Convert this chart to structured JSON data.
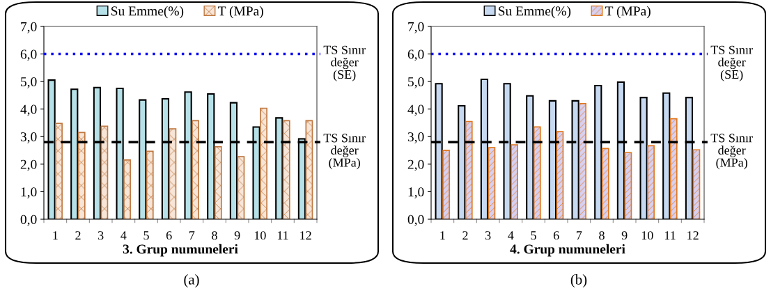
{
  "chart_data": [
    {
      "type": "bar",
      "xlabel": "3. Grup numuneleri",
      "categories": [
        "1",
        "2",
        "3",
        "4",
        "5",
        "6",
        "7",
        "8",
        "9",
        "10",
        "11",
        "12"
      ],
      "series": [
        {
          "name": "Su Emme(%)",
          "color": "#b7e1e8",
          "values": [
            5.05,
            4.72,
            4.78,
            4.75,
            4.33,
            4.37,
            4.62,
            4.55,
            4.23,
            3.35,
            3.68,
            2.92
          ]
        },
        {
          "name": "T (MPa)",
          "color": "#c07840",
          "values": [
            3.48,
            3.15,
            3.38,
            2.15,
            2.47,
            3.28,
            3.58,
            2.63,
            2.27,
            4.03,
            3.58,
            3.58
          ]
        }
      ],
      "ylim": [
        0,
        7
      ],
      "yticks": [
        {
          "value": 0,
          "label": "0,0"
        },
        {
          "value": 1,
          "label": "1,0"
        },
        {
          "value": 2,
          "label": "2,0"
        },
        {
          "value": 3,
          "label": "3,0"
        },
        {
          "value": 4,
          "label": "4,0"
        },
        {
          "value": 5,
          "label": "5,0"
        },
        {
          "value": 6,
          "label": "6,0"
        },
        {
          "value": 7,
          "label": "7,0"
        }
      ],
      "ref_lines": [
        {
          "axis": "y",
          "value": 6.0,
          "label": "TS Sınır\ndeğer\n(SE)",
          "color": "#0000ee",
          "line_style": "dotted"
        },
        {
          "axis": "y",
          "value": 2.8,
          "label": "TS Sınır\ndeğer\n(MPa)",
          "color": "#000000",
          "line_style": "dashed"
        }
      ],
      "legend": "top",
      "grid": false,
      "annotations": [
        "(a)"
      ]
    },
    {
      "type": "bar",
      "xlabel": "4. Grup numuneleri",
      "categories": [
        "1",
        "2",
        "3",
        "4",
        "5",
        "6",
        "7",
        "8",
        "9",
        "10",
        "11",
        "12"
      ],
      "series": [
        {
          "name": "Su Emme(%)",
          "color": "#c6d9f1",
          "values": [
            4.92,
            4.12,
            5.08,
            4.92,
            4.48,
            4.3,
            4.3,
            4.85,
            4.98,
            4.42,
            4.58,
            4.42
          ]
        },
        {
          "name": "T (MPa)",
          "color": "#e07820",
          "values": [
            2.5,
            3.55,
            2.6,
            2.7,
            3.35,
            3.18,
            4.2,
            2.57,
            2.42,
            2.67,
            3.65,
            2.52
          ]
        }
      ],
      "ylim": [
        0,
        7
      ],
      "yticks": [
        {
          "value": 0,
          "label": "0,0"
        },
        {
          "value": 1,
          "label": "1,0"
        },
        {
          "value": 2,
          "label": "2,0"
        },
        {
          "value": 3,
          "label": "3,0"
        },
        {
          "value": 4,
          "label": "4,0"
        },
        {
          "value": 5,
          "label": "5,0"
        },
        {
          "value": 6,
          "label": "6,0"
        },
        {
          "value": 7,
          "label": "7,0"
        }
      ],
      "ref_lines": [
        {
          "axis": "y",
          "value": 6.0,
          "label": "TS Sınır\ndeğer\n(SE)",
          "color": "#0000ee",
          "line_style": "dotted"
        },
        {
          "axis": "y",
          "value": 2.8,
          "label": "TS Sınır\ndeğer\n(MPa)",
          "color": "#000000",
          "line_style": "dashed"
        }
      ],
      "legend": "top",
      "grid": false,
      "annotations": [
        "(b)"
      ]
    }
  ]
}
